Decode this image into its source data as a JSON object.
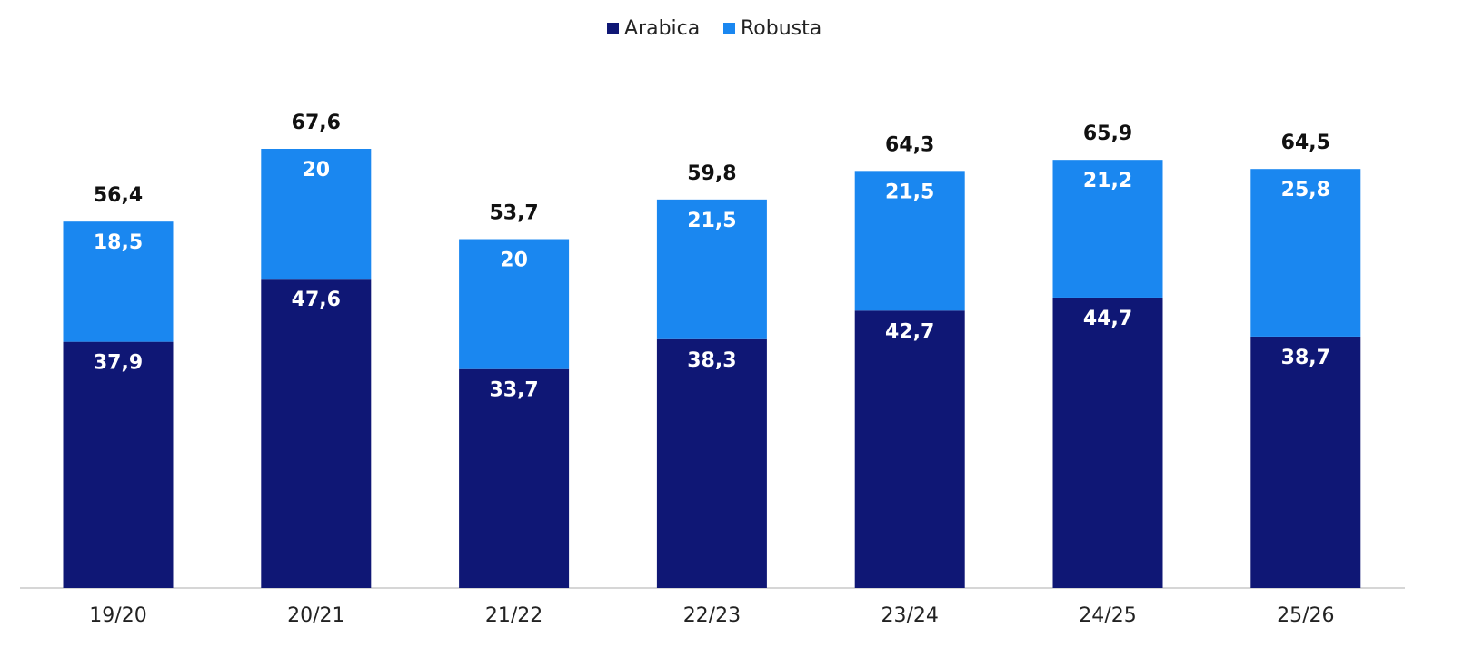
{
  "chart_data": {
    "type": "stacked_bar",
    "categories": [
      "19/20",
      "20/21",
      "21/22",
      "22/23",
      "23/24",
      "24/25",
      "25/26"
    ],
    "series": [
      {
        "name": "Arabica",
        "color": "#0f1775",
        "values": [
          37.9,
          47.6,
          33.7,
          38.3,
          42.7,
          44.7,
          38.7
        ],
        "value_labels": [
          "37,9",
          "47,6",
          "33,7",
          "38,3",
          "42,7",
          "44,7",
          "38,7"
        ]
      },
      {
        "name": "Robusta",
        "color": "#1a87f0",
        "values": [
          18.5,
          20,
          20,
          21.5,
          21.5,
          21.2,
          25.8
        ],
        "value_labels": [
          "18,5",
          "20",
          "20",
          "21,5",
          "21,5",
          "21,2",
          "25,8"
        ]
      }
    ],
    "totals": [
      56.4,
      67.6,
      53.7,
      59.8,
      64.3,
      65.9,
      64.5
    ],
    "total_labels": [
      "56,4",
      "67,6",
      "53,7",
      "59,8",
      "64,3",
      "65,9",
      "64,5"
    ]
  }
}
